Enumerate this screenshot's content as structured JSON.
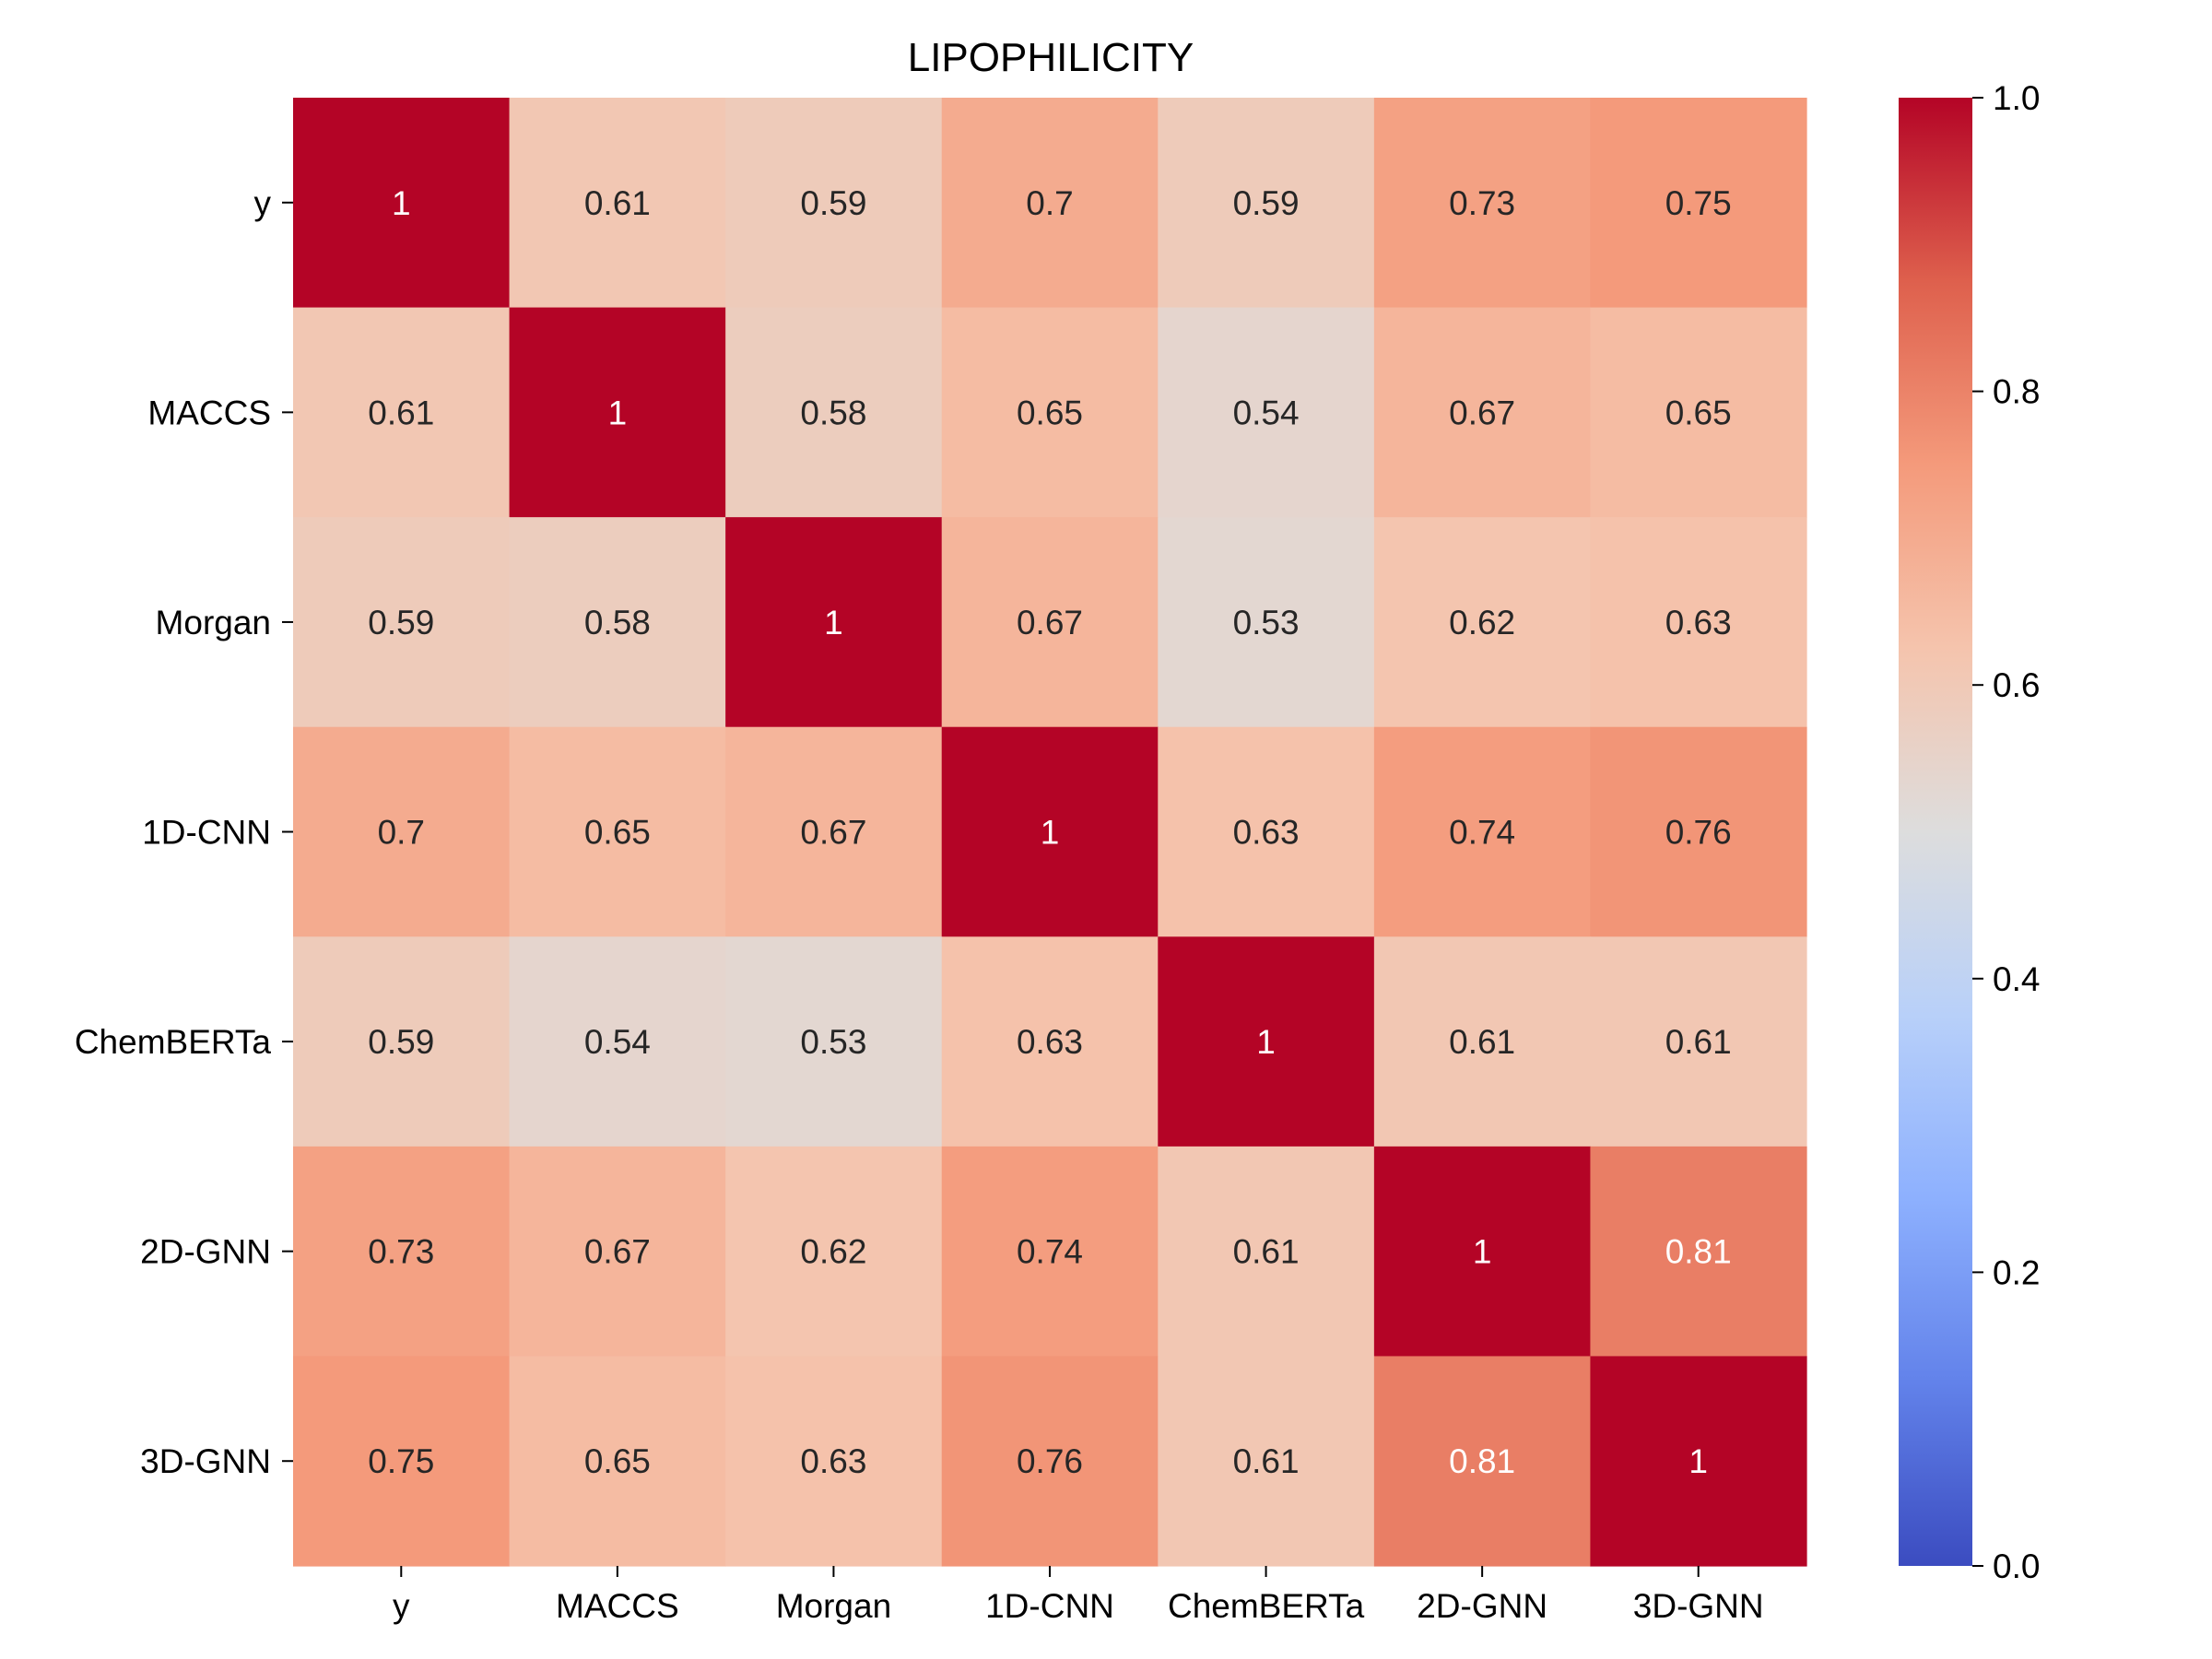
{
  "chart_data": {
    "type": "heatmap",
    "title": "LIPOPHILICITY",
    "xlabel": "",
    "ylabel": "",
    "x_categories": [
      "y",
      "MACCS",
      "Morgan",
      "1D-CNN",
      "ChemBERTa",
      "2D-GNN",
      "3D-GNN"
    ],
    "y_categories": [
      "y",
      "MACCS",
      "Morgan",
      "1D-CNN",
      "ChemBERTa",
      "2D-GNN",
      "3D-GNN"
    ],
    "values": [
      [
        1,
        0.61,
        0.59,
        0.7,
        0.59,
        0.73,
        0.75
      ],
      [
        0.61,
        1,
        0.58,
        0.65,
        0.54,
        0.67,
        0.65
      ],
      [
        0.59,
        0.58,
        1,
        0.67,
        0.53,
        0.62,
        0.63
      ],
      [
        0.7,
        0.65,
        0.67,
        1,
        0.63,
        0.74,
        0.76
      ],
      [
        0.59,
        0.54,
        0.53,
        0.63,
        1,
        0.61,
        0.61
      ],
      [
        0.73,
        0.67,
        0.62,
        0.74,
        0.61,
        1,
        0.81
      ],
      [
        0.75,
        0.65,
        0.63,
        0.76,
        0.61,
        0.81,
        1
      ]
    ],
    "colorbar": {
      "vmin": 0.0,
      "vmax": 1.0,
      "ticks": [
        "0.0",
        "0.2",
        "0.4",
        "0.6",
        "0.8",
        "1.0"
      ],
      "colormap": "coolwarm",
      "placement": "right"
    },
    "annotations": true,
    "grid": false
  }
}
